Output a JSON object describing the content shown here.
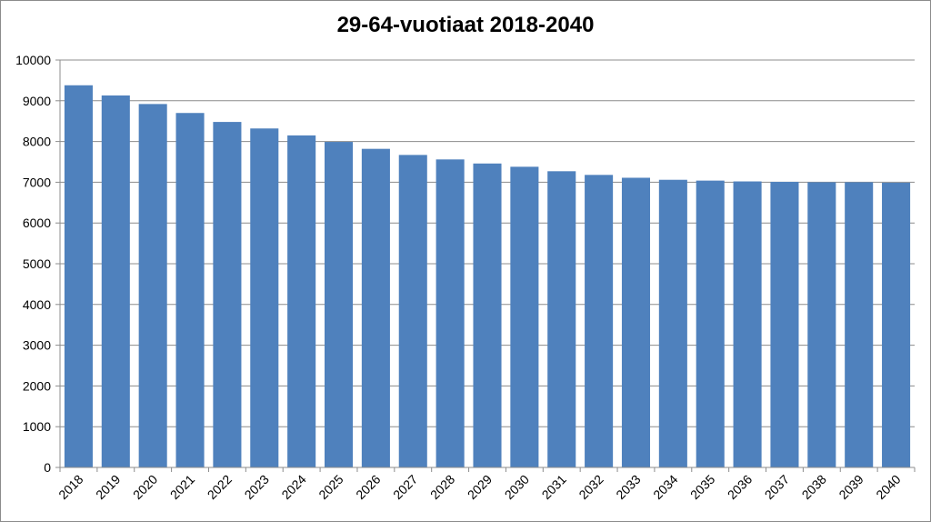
{
  "chart_data": {
    "type": "bar",
    "title": "29-64-vuotiaat 2018-2040",
    "xlabel": "",
    "ylabel": "",
    "ylim": [
      0,
      10000
    ],
    "yticks": [
      0,
      1000,
      2000,
      3000,
      4000,
      5000,
      6000,
      7000,
      8000,
      9000,
      10000
    ],
    "grid": true,
    "legend": "none",
    "bar_color": "#4F81BD",
    "categories": [
      "2018",
      "2019",
      "2020",
      "2021",
      "2022",
      "2023",
      "2024",
      "2025",
      "2026",
      "2027",
      "2028",
      "2029",
      "2030",
      "2031",
      "2032",
      "2033",
      "2034",
      "2035",
      "2036",
      "2037",
      "2038",
      "2039",
      "2040"
    ],
    "values": [
      9380,
      9130,
      8920,
      8700,
      8480,
      8320,
      8150,
      7990,
      7820,
      7670,
      7560,
      7460,
      7380,
      7270,
      7180,
      7110,
      7060,
      7040,
      7020,
      7010,
      7000,
      7000,
      6990
    ]
  }
}
